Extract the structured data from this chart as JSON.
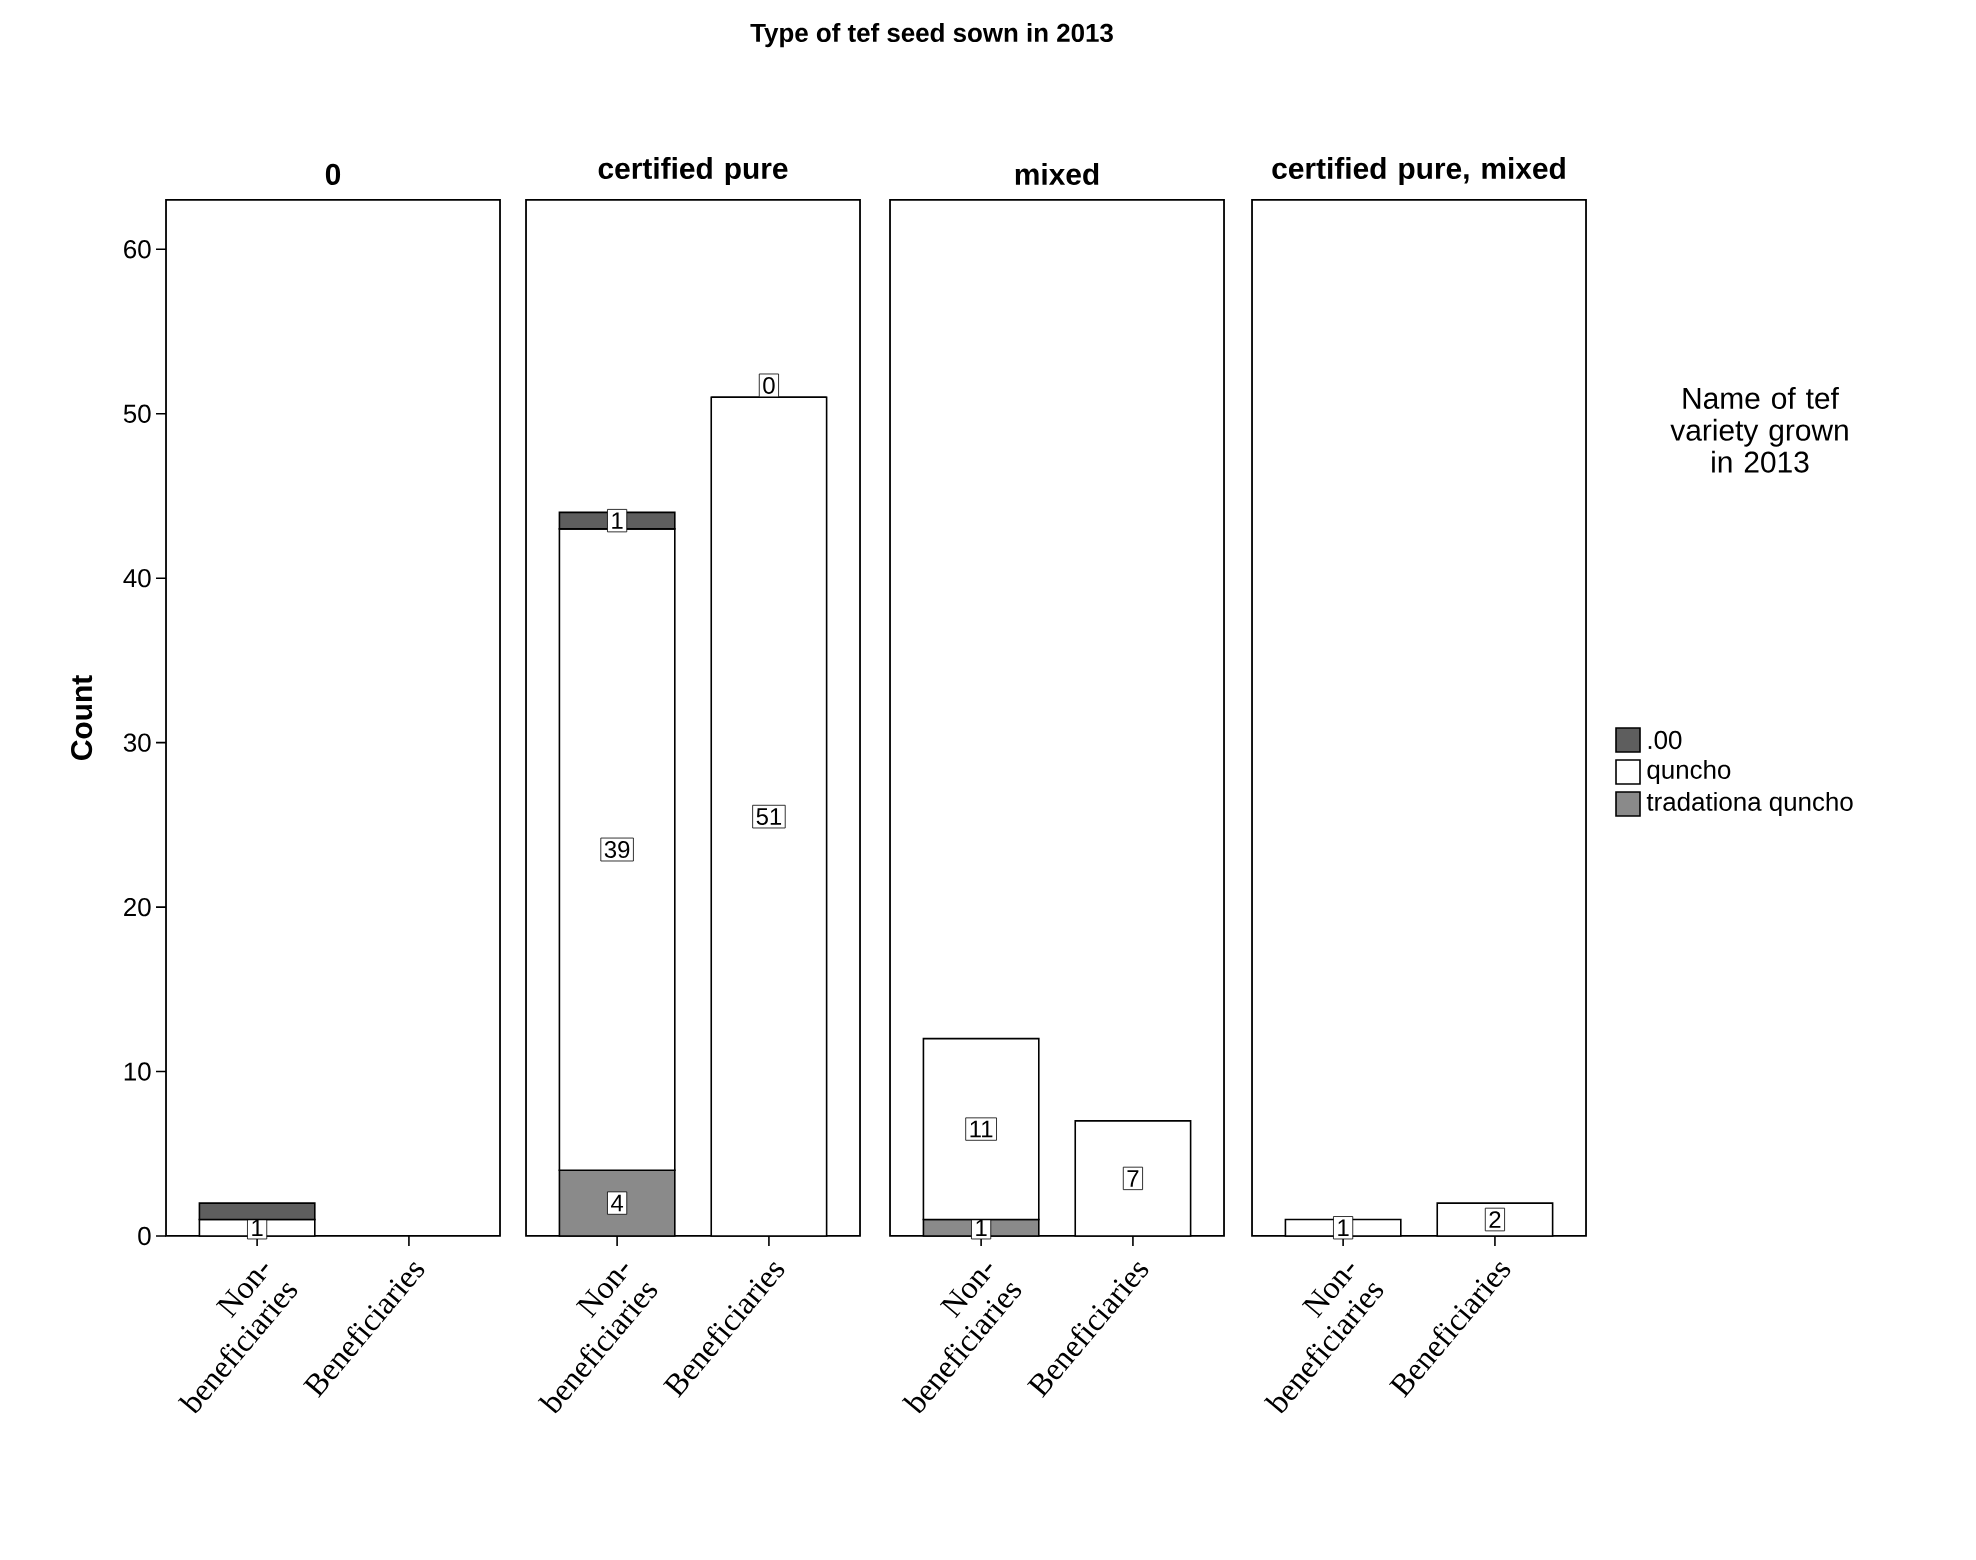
{
  "chart_data": [
    {
      "type": "bar",
      "title": "0",
      "ylabel": "Count",
      "annotations": [
        "Type of tef seed sown in 2013"
      ],
      "categories": [
        "Non- beneficiaries",
        "Beneficiaries"
      ],
      "stacked": true,
      "ylim": [
        0,
        63
      ],
      "yticks": [
        0,
        10,
        20,
        30,
        40,
        50,
        60
      ],
      "series": [
        {
          "color": "#8a8a8a",
          "values": [
            null,
            null
          ],
          "value_labels": [
            null,
            null
          ]
        },
        {
          "color": "#ffffff",
          "values": [
            1,
            null
          ],
          "value_labels": [
            "1",
            null
          ]
        },
        {
          "color": "#5e5e5e",
          "values": [
            1,
            null
          ],
          "value_labels": [
            null,
            null
          ]
        }
      ]
    },
    {
      "type": "bar",
      "title": "certified pure",
      "categories": [
        "Non- beneficiaries",
        "Beneficiaries"
      ],
      "stacked": true,
      "ylim": [
        0,
        63
      ],
      "tick_labels": "x",
      "series": [
        {
          "color": "#8a8a8a",
          "values": [
            4,
            null
          ],
          "value_labels": [
            "4",
            null
          ]
        },
        {
          "color": "#ffffff",
          "values": [
            39,
            51
          ],
          "value_labels": [
            "39",
            "51"
          ]
        },
        {
          "color": "#5e5e5e",
          "values": [
            1,
            0
          ],
          "value_labels": [
            "1",
            "0"
          ]
        }
      ]
    },
    {
      "type": "bar",
      "title": "mixed",
      "categories": [
        "Non- beneficiaries",
        "Beneficiaries"
      ],
      "stacked": true,
      "ylim": [
        0,
        63
      ],
      "tick_labels": "x",
      "series": [
        {
          "color": "#8a8a8a",
          "values": [
            1,
            null
          ],
          "value_labels": [
            "1",
            null
          ]
        },
        {
          "color": "#ffffff",
          "values": [
            11,
            7
          ],
          "value_labels": [
            "11",
            "7"
          ]
        },
        {
          "color": "#5e5e5e",
          "values": [
            null,
            null
          ],
          "value_labels": [
            null,
            null
          ]
        }
      ]
    },
    {
      "type": "bar",
      "title": "certified pure, mixed",
      "categories": [
        "Non- beneficiaries",
        "Beneficiaries"
      ],
      "stacked": true,
      "ylim": [
        0,
        63
      ],
      "tick_labels": "x",
      "legend": "right",
      "legend_title": "Name of tef variety grown in 2013",
      "series": [
        {
          "name": "tradationa quncho",
          "color": "#8a8a8a",
          "values": [
            null,
            null
          ],
          "value_labels": [
            null,
            null
          ]
        },
        {
          "name": "quncho",
          "color": "#ffffff",
          "values": [
            1,
            2
          ],
          "value_labels": [
            "1",
            "2"
          ]
        },
        {
          "name": ".00",
          "color": "#5e5e5e",
          "values": [
            null,
            null
          ],
          "value_labels": [
            null,
            null
          ]
        }
      ]
    }
  ]
}
